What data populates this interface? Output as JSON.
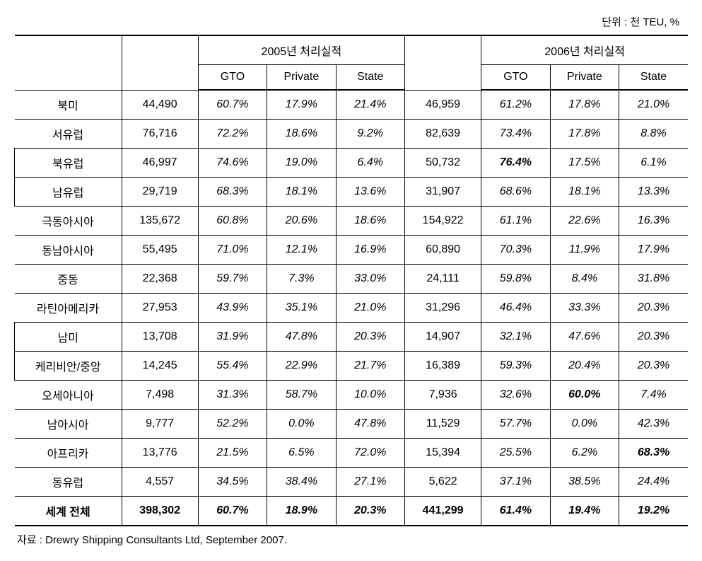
{
  "unit_label": "단위 : 천 TEU, %",
  "header": {
    "year2005": "2005년 처리실적",
    "year2006": "2006년 처리실적",
    "gto": "GTO",
    "private": "Private",
    "state": "State"
  },
  "rows": [
    {
      "region": "북미",
      "indent": false,
      "total2005": "44,490",
      "gto2005": "60.7%",
      "priv2005": "17.9%",
      "state2005": "21.4%",
      "total2006": "46,959",
      "gto2006": "61.2%",
      "priv2006": "17.8%",
      "state2006": "21.0%"
    },
    {
      "region": "서유럽",
      "indent": false,
      "total2005": "76,716",
      "gto2005": "72.2%",
      "priv2005": "18.6%",
      "state2005": "9.2%",
      "total2006": "82,639",
      "gto2006": "73.4%",
      "priv2006": "17.8%",
      "state2006": "8.8%"
    },
    {
      "region": "북유럽",
      "indent": true,
      "total2005": "46,997",
      "gto2005": "74.6%",
      "priv2005": "19.0%",
      "state2005": "6.4%",
      "total2006": "50,732",
      "gto2006": "76.4%",
      "gto2006_bold": true,
      "priv2006": "17.5%",
      "state2006": "6.1%"
    },
    {
      "region": "남유럽",
      "indent": true,
      "total2005": "29,719",
      "gto2005": "68.3%",
      "priv2005": "18.1%",
      "state2005": "13.6%",
      "total2006": "31,907",
      "gto2006": "68.6%",
      "priv2006": "18.1%",
      "state2006": "13.3%"
    },
    {
      "region": "극동아시아",
      "indent": false,
      "total2005": "135,672",
      "gto2005": "60.8%",
      "priv2005": "20.6%",
      "state2005": "18.6%",
      "total2006": "154,922",
      "gto2006": "61.1%",
      "priv2006": "22.6%",
      "state2006": "16.3%"
    },
    {
      "region": "동남아시아",
      "indent": false,
      "total2005": "55,495",
      "gto2005": "71.0%",
      "priv2005": "12.1%",
      "state2005": "16.9%",
      "total2006": "60,890",
      "gto2006": "70.3%",
      "priv2006": "11.9%",
      "state2006": "17.9%"
    },
    {
      "region": "중동",
      "indent": false,
      "total2005": "22,368",
      "gto2005": "59.7%",
      "priv2005": "7.3%",
      "state2005": "33.0%",
      "total2006": "24,111",
      "gto2006": "59.8%",
      "priv2006": "8.4%",
      "state2006": "31.8%"
    },
    {
      "region": "라틴아메리카",
      "indent": false,
      "total2005": "27,953",
      "gto2005": "43.9%",
      "priv2005": "35.1%",
      "state2005": "21.0%",
      "total2006": "31,296",
      "gto2006": "46.4%",
      "priv2006": "33.3%",
      "state2006": "20.3%"
    },
    {
      "region": "남미",
      "indent": true,
      "total2005": "13,708",
      "gto2005": "31.9%",
      "priv2005": "47.8%",
      "state2005": "20.3%",
      "total2006": "14,907",
      "gto2006": "32.1%",
      "priv2006": "47.6%",
      "state2006": "20.3%"
    },
    {
      "region": "케리비안/중앙",
      "indent": true,
      "total2005": "14,245",
      "gto2005": "55.4%",
      "priv2005": "22.9%",
      "state2005": "21.7%",
      "total2006": "16,389",
      "gto2006": "59.3%",
      "priv2006": "20.4%",
      "state2006": "20.3%"
    },
    {
      "region": "오세아니아",
      "indent": false,
      "total2005": "7,498",
      "gto2005": "31.3%",
      "priv2005": "58.7%",
      "state2005": "10.0%",
      "total2006": "7,936",
      "gto2006": "32.6%",
      "priv2006": "60.0%",
      "priv2006_bold": true,
      "state2006": "7.4%"
    },
    {
      "region": "남아시아",
      "indent": false,
      "total2005": "9,777",
      "gto2005": "52.2%",
      "priv2005": "0.0%",
      "state2005": "47.8%",
      "total2006": "11,529",
      "gto2006": "57.7%",
      "priv2006": "0.0%",
      "state2006": "42.3%"
    },
    {
      "region": "아프리카",
      "indent": false,
      "total2005": "13,776",
      "gto2005": "21.5%",
      "priv2005": "6.5%",
      "state2005": "72.0%",
      "total2006": "15,394",
      "gto2006": "25.5%",
      "priv2006": "6.2%",
      "state2006": "68.3%",
      "state2006_bold": true
    },
    {
      "region": "동유럽",
      "indent": false,
      "total2005": "4,557",
      "gto2005": "34.5%",
      "priv2005": "38.4%",
      "state2005": "27.1%",
      "total2006": "5,622",
      "gto2006": "37.1%",
      "priv2006": "38.5%",
      "state2006": "24.4%"
    },
    {
      "region": "세계 전체",
      "indent": false,
      "bold_row": true,
      "total2005": "398,302",
      "gto2005": "60.7%",
      "priv2005": "18.9%",
      "state2005": "20.3%",
      "total2006": "441,299",
      "gto2006": "61.4%",
      "priv2006": "19.4%",
      "state2006": "19.2%"
    }
  ],
  "source": "자료 : Drewry Shipping Consultants Ltd, September 2007.",
  "styling": {
    "font_family": "Malgun Gothic",
    "font_size_body": 16,
    "font_size_small": 15,
    "border_color": "#000000",
    "background": "#ffffff",
    "col_widths": {
      "region": 140,
      "total": 100,
      "pct": 90
    }
  }
}
